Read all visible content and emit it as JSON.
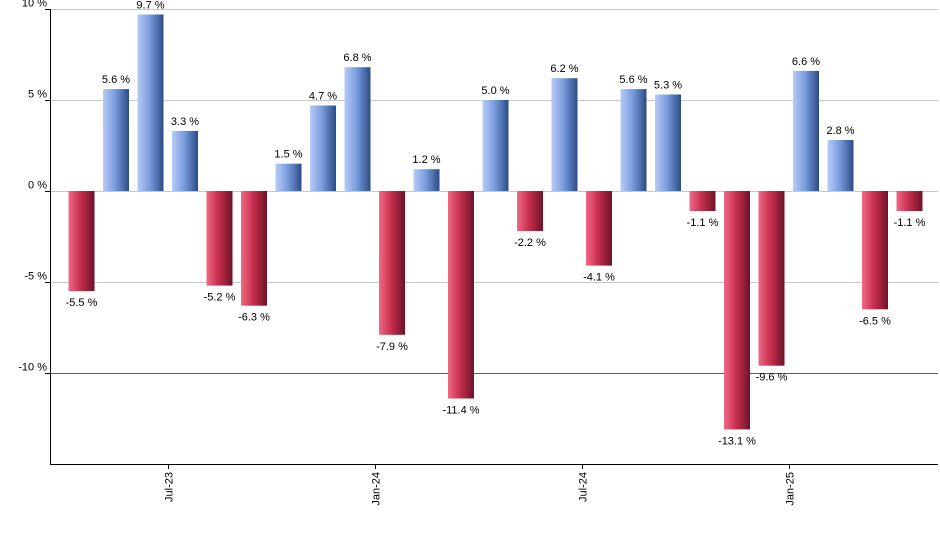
{
  "chart_data": {
    "type": "bar",
    "title": "",
    "xlabel": "",
    "ylabel": "",
    "ylim": [
      -15,
      10
    ],
    "yticks": [
      10,
      5,
      0,
      -5,
      -10
    ],
    "ytick_labels": [
      "10 %",
      "5 %",
      "0 %",
      "-5 %",
      "-10 %"
    ],
    "reference_line": -10,
    "grid": true,
    "values": [
      -5.5,
      5.6,
      9.7,
      3.3,
      -5.2,
      -6.3,
      1.5,
      4.7,
      6.8,
      -7.9,
      1.2,
      -11.4,
      5.0,
      -2.2,
      6.2,
      -4.1,
      5.6,
      5.3,
      -1.1,
      -13.1,
      -9.6,
      6.6,
      2.8,
      -6.5,
      -1.1
    ],
    "labels": [
      "-5.5 %",
      "5.6 %",
      "9.7 %",
      "3.3 %",
      "-5.2 %",
      "-6.3 %",
      "1.5 %",
      "4.7 %",
      "6.8 %",
      "-7.9 %",
      "1.2 %",
      "-11.4 %",
      "5.0 %",
      "-2.2 %",
      "6.2 %",
      "-4.1 %",
      "5.6 %",
      "5.3 %",
      "-1.1 %",
      "-13.1 %",
      "-9.6 %",
      "6.6 %",
      "2.8 %",
      "-6.5 %",
      "-1.1 %"
    ],
    "x_ticks": [
      {
        "label": "Jul-23",
        "position": 2.5
      },
      {
        "label": "Jan-24",
        "position": 8.5
      },
      {
        "label": "Jul-24",
        "position": 14.5
      },
      {
        "label": "Jan-25",
        "position": 20.5
      }
    ],
    "colors": {
      "positive": "#7b9ee0",
      "negative": "#c8304e",
      "grid": "#c8c8c8",
      "reference_line": "#2e7d2e",
      "axis": "#000000"
    }
  }
}
